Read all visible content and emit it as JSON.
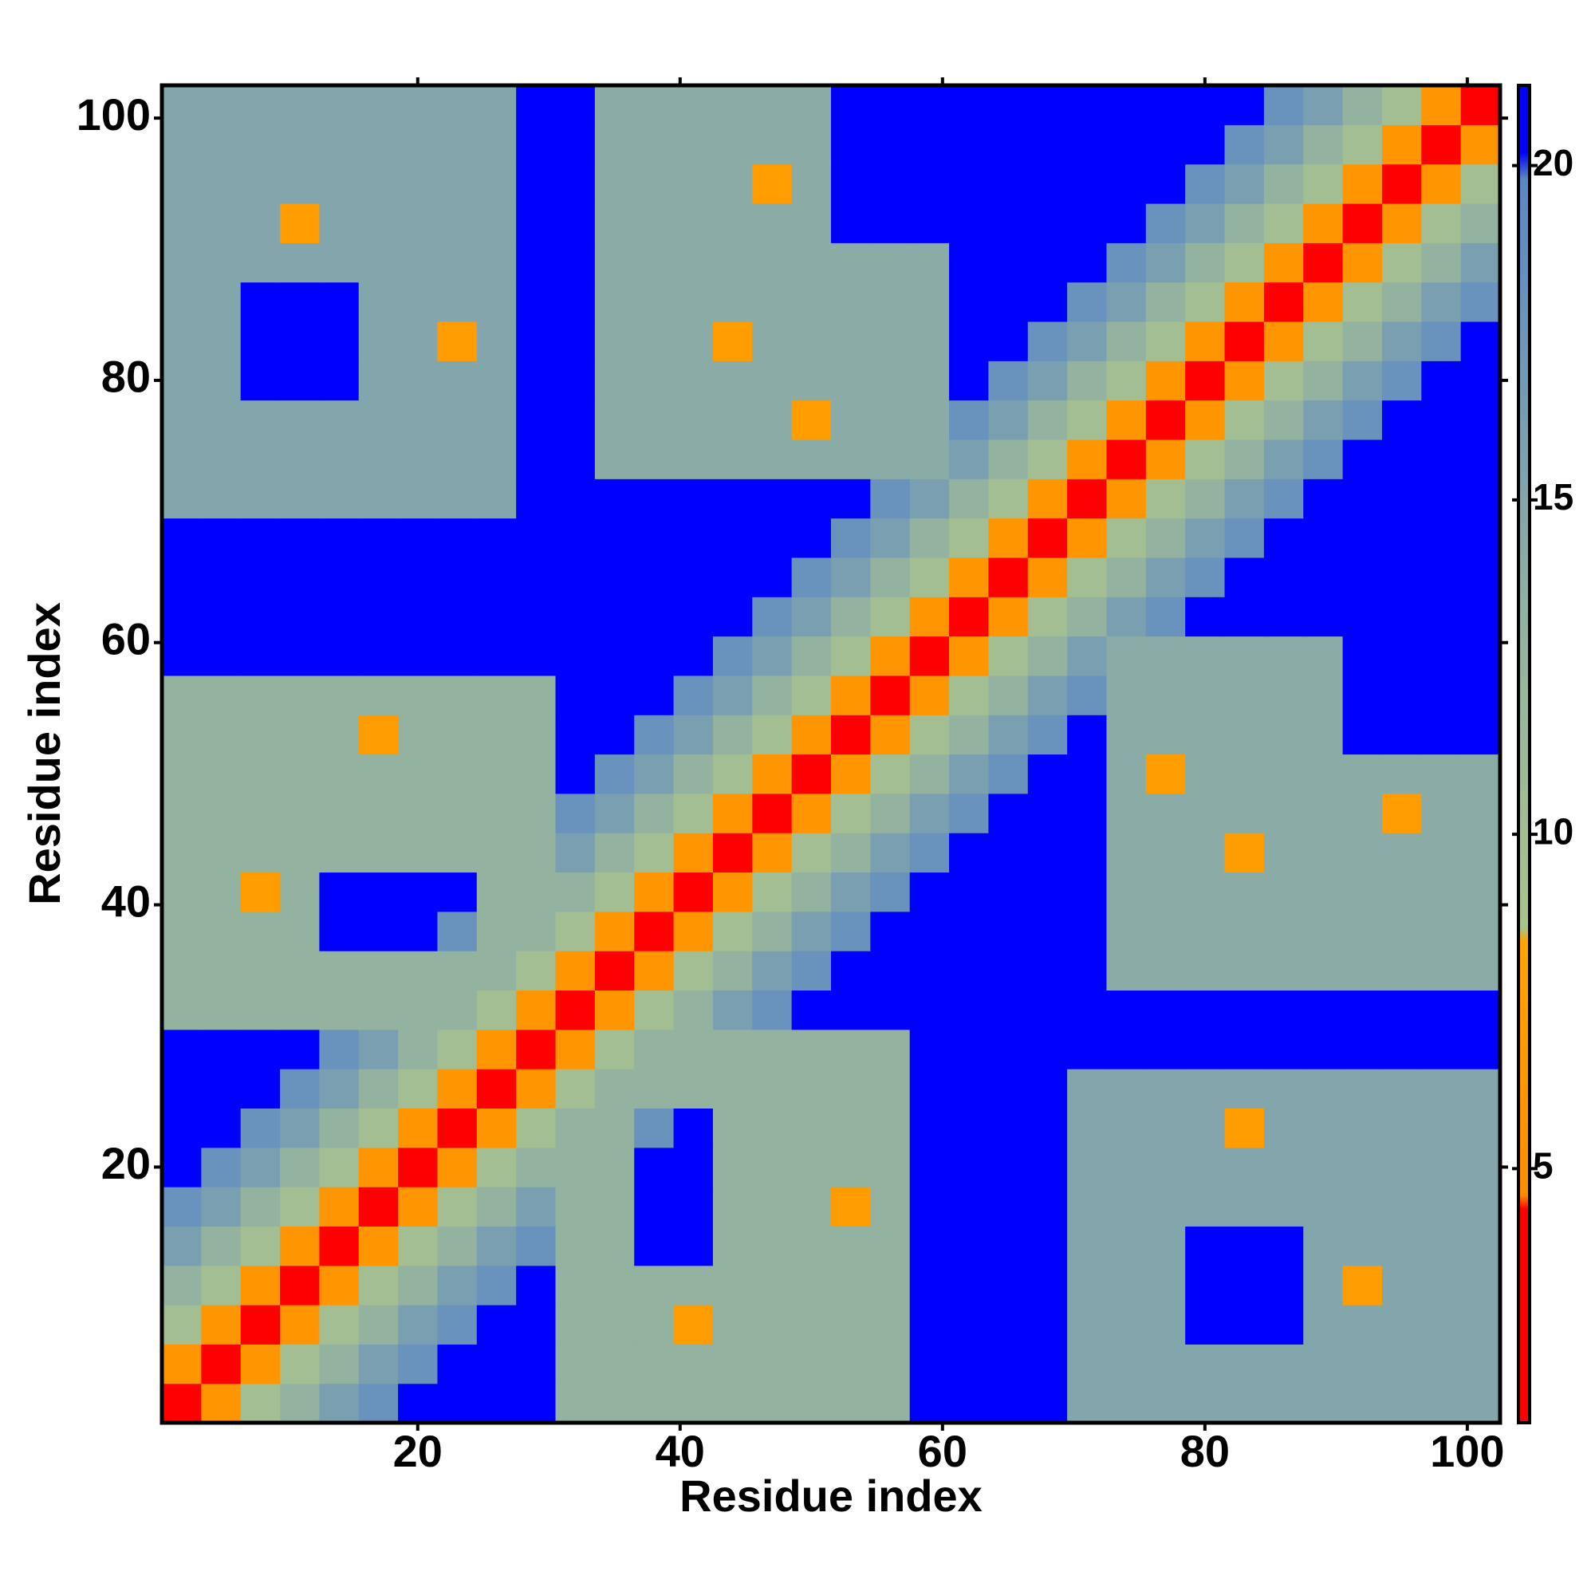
{
  "chart_data": {
    "type": "heatmap",
    "x_label": "Residue index",
    "y_label": "Residue index",
    "x": [
      2,
      5,
      8,
      11,
      14,
      17,
      20,
      23,
      26,
      29,
      32,
      35,
      38,
      41,
      44,
      47,
      50,
      53,
      56,
      59,
      62,
      65,
      68,
      71,
      74,
      77,
      80,
      83,
      86,
      89,
      92,
      95,
      98,
      101
    ],
    "y": [
      2,
      5,
      8,
      11,
      14,
      17,
      20,
      23,
      26,
      29,
      32,
      35,
      38,
      41,
      44,
      47,
      50,
      53,
      56,
      59,
      62,
      65,
      68,
      71,
      74,
      77,
      80,
      83,
      86,
      89,
      92,
      95,
      98,
      101
    ],
    "xlim": [
      0.5,
      102.5
    ],
    "ylim": [
      0.5,
      102.5
    ],
    "xticks": [
      20,
      40,
      60,
      80,
      100
    ],
    "yticks": [
      20,
      40,
      60,
      80,
      100
    ],
    "zlim": [
      1.2,
      21.2
    ],
    "colorbar_ticks": [
      5,
      10,
      15,
      20
    ],
    "colorscale": [
      {
        "value": 1.2,
        "color": "#ff0000"
      },
      {
        "value": 4.4,
        "color": "#ff0000"
      },
      {
        "value": 4.6,
        "color": "#ff8c00"
      },
      {
        "value": 8.4,
        "color": "#ffa500"
      },
      {
        "value": 8.6,
        "color": "#a9c38c"
      },
      {
        "value": 13,
        "color": "#93b3a0"
      },
      {
        "value": 19.8,
        "color": "#5a86c6"
      },
      {
        "value": 20.2,
        "color": "#0000ff"
      },
      {
        "value": 21.2,
        "color": "#0000ff"
      }
    ],
    "z": [
      [
        2,
        6,
        10,
        13,
        16,
        18,
        21,
        21,
        21,
        21,
        13,
        13,
        13,
        13,
        13,
        13,
        13,
        13,
        13,
        21,
        21,
        21,
        21,
        15,
        15,
        15,
        15,
        15,
        15,
        15,
        15,
        15,
        15,
        15
      ],
      [
        6,
        2,
        6,
        10,
        13,
        16,
        18,
        21,
        21,
        21,
        13,
        13,
        13,
        13,
        13,
        13,
        13,
        13,
        13,
        21,
        21,
        21,
        21,
        15,
        15,
        15,
        15,
        15,
        15,
        15,
        15,
        15,
        15,
        15
      ],
      [
        10,
        6,
        2,
        6,
        10,
        13,
        16,
        18,
        21,
        21,
        13,
        13,
        13,
        7,
        13,
        13,
        13,
        13,
        13,
        21,
        21,
        21,
        21,
        15,
        15,
        15,
        21,
        21,
        21,
        15,
        15,
        15,
        15,
        15
      ],
      [
        13,
        10,
        6,
        2,
        6,
        10,
        13,
        16,
        18,
        21,
        13,
        13,
        13,
        13,
        13,
        13,
        13,
        13,
        13,
        21,
        21,
        21,
        21,
        15,
        15,
        15,
        21,
        21,
        21,
        15,
        7,
        15,
        15,
        15
      ],
      [
        16,
        13,
        10,
        6,
        2,
        6,
        10,
        13,
        16,
        18,
        13,
        13,
        21,
        21,
        13,
        13,
        13,
        13,
        13,
        21,
        21,
        21,
        21,
        15,
        15,
        15,
        21,
        21,
        21,
        15,
        15,
        15,
        15,
        15
      ],
      [
        18,
        16,
        13,
        10,
        6,
        2,
        6,
        10,
        13,
        16,
        13,
        13,
        21,
        21,
        13,
        13,
        13,
        7,
        13,
        21,
        21,
        21,
        21,
        15,
        15,
        15,
        15,
        15,
        15,
        15,
        15,
        15,
        15,
        15
      ],
      [
        21,
        18,
        16,
        13,
        10,
        6,
        2,
        6,
        10,
        13,
        13,
        13,
        21,
        21,
        13,
        13,
        13,
        13,
        13,
        21,
        21,
        21,
        21,
        15,
        15,
        15,
        15,
        15,
        15,
        15,
        15,
        15,
        15,
        15
      ],
      [
        21,
        21,
        18,
        16,
        13,
        10,
        6,
        2,
        6,
        10,
        13,
        13,
        18,
        21,
        13,
        13,
        13,
        13,
        13,
        21,
        21,
        21,
        21,
        15,
        15,
        15,
        15,
        7,
        15,
        15,
        15,
        15,
        15,
        15
      ],
      [
        21,
        21,
        21,
        18,
        16,
        13,
        10,
        6,
        2,
        6,
        10,
        13,
        13,
        13,
        13,
        13,
        13,
        13,
        13,
        21,
        21,
        21,
        21,
        15,
        15,
        15,
        15,
        15,
        15,
        15,
        15,
        15,
        15,
        15
      ],
      [
        21,
        21,
        21,
        21,
        18,
        16,
        13,
        10,
        6,
        2,
        6,
        10,
        13,
        13,
        13,
        13,
        13,
        13,
        13,
        21,
        21,
        21,
        21,
        21,
        21,
        21,
        21,
        21,
        21,
        21,
        21,
        21,
        21,
        21
      ],
      [
        13,
        13,
        13,
        13,
        13,
        13,
        13,
        13,
        10,
        6,
        2,
        6,
        10,
        13,
        16,
        18,
        21,
        21,
        21,
        21,
        21,
        21,
        21,
        21,
        21,
        21,
        21,
        21,
        21,
        21,
        21,
        21,
        21,
        21
      ],
      [
        13,
        13,
        13,
        13,
        13,
        13,
        13,
        13,
        13,
        10,
        6,
        2,
        6,
        10,
        13,
        16,
        18,
        21,
        21,
        21,
        21,
        21,
        21,
        21,
        14,
        14,
        14,
        14,
        14,
        14,
        14,
        14,
        14,
        14
      ],
      [
        13,
        13,
        13,
        13,
        21,
        21,
        21,
        18,
        13,
        13,
        10,
        6,
        2,
        6,
        10,
        13,
        16,
        18,
        21,
        21,
        21,
        21,
        21,
        21,
        14,
        14,
        14,
        14,
        14,
        14,
        14,
        14,
        14,
        14
      ],
      [
        13,
        13,
        7,
        13,
        21,
        21,
        21,
        21,
        13,
        13,
        13,
        10,
        6,
        2,
        6,
        10,
        13,
        16,
        18,
        21,
        21,
        21,
        21,
        21,
        14,
        14,
        14,
        14,
        14,
        14,
        14,
        14,
        14,
        14
      ],
      [
        13,
        13,
        13,
        13,
        13,
        13,
        13,
        13,
        13,
        13,
        16,
        13,
        10,
        6,
        2,
        6,
        10,
        13,
        16,
        18,
        21,
        21,
        21,
        21,
        14,
        14,
        14,
        7,
        14,
        14,
        14,
        14,
        14,
        14
      ],
      [
        13,
        13,
        13,
        13,
        13,
        13,
        13,
        13,
        13,
        13,
        18,
        16,
        13,
        10,
        6,
        2,
        6,
        10,
        13,
        16,
        18,
        21,
        21,
        21,
        14,
        14,
        14,
        14,
        14,
        14,
        14,
        7,
        14,
        14
      ],
      [
        13,
        13,
        13,
        13,
        13,
        13,
        13,
        13,
        13,
        13,
        21,
        18,
        16,
        13,
        10,
        6,
        2,
        6,
        10,
        13,
        16,
        18,
        21,
        21,
        14,
        7,
        14,
        14,
        14,
        14,
        14,
        14,
        14,
        14
      ],
      [
        13,
        13,
        13,
        13,
        13,
        7,
        13,
        13,
        13,
        13,
        21,
        21,
        18,
        16,
        13,
        10,
        6,
        2,
        6,
        10,
        13,
        16,
        18,
        21,
        14,
        14,
        14,
        14,
        14,
        14,
        21,
        21,
        21,
        21
      ],
      [
        13,
        13,
        13,
        13,
        13,
        13,
        13,
        13,
        13,
        13,
        21,
        21,
        21,
        18,
        16,
        13,
        10,
        6,
        2,
        6,
        10,
        13,
        16,
        18,
        14,
        14,
        14,
        14,
        14,
        14,
        21,
        21,
        21,
        21
      ],
      [
        21,
        21,
        21,
        21,
        21,
        21,
        21,
        21,
        21,
        21,
        21,
        21,
        21,
        21,
        18,
        16,
        13,
        10,
        6,
        2,
        6,
        10,
        13,
        16,
        14,
        14,
        14,
        14,
        14,
        14,
        21,
        21,
        21,
        21
      ],
      [
        21,
        21,
        21,
        21,
        21,
        21,
        21,
        21,
        21,
        21,
        21,
        21,
        21,
        21,
        21,
        18,
        16,
        13,
        10,
        6,
        2,
        6,
        10,
        13,
        16,
        18,
        21,
        21,
        21,
        21,
        21,
        21,
        21,
        21
      ],
      [
        21,
        21,
        21,
        21,
        21,
        21,
        21,
        21,
        21,
        21,
        21,
        21,
        21,
        21,
        21,
        21,
        18,
        16,
        13,
        10,
        6,
        2,
        6,
        10,
        13,
        16,
        18,
        21,
        21,
        21,
        21,
        21,
        21,
        21
      ],
      [
        21,
        21,
        21,
        21,
        21,
        21,
        21,
        21,
        21,
        21,
        21,
        21,
        21,
        21,
        21,
        21,
        21,
        18,
        16,
        13,
        10,
        6,
        2,
        6,
        10,
        13,
        16,
        18,
        21,
        21,
        21,
        21,
        21,
        21
      ],
      [
        15,
        15,
        15,
        15,
        15,
        15,
        15,
        15,
        15,
        21,
        21,
        21,
        21,
        21,
        21,
        21,
        21,
        21,
        18,
        16,
        13,
        10,
        6,
        2,
        6,
        10,
        13,
        16,
        18,
        21,
        21,
        21,
        21,
        21
      ],
      [
        15,
        15,
        15,
        15,
        15,
        15,
        15,
        15,
        15,
        21,
        21,
        14,
        14,
        14,
        14,
        14,
        14,
        14,
        14,
        14,
        16,
        13,
        10,
        6,
        2,
        6,
        10,
        13,
        16,
        18,
        21,
        21,
        21,
        21
      ],
      [
        15,
        15,
        15,
        15,
        15,
        15,
        15,
        15,
        15,
        21,
        21,
        14,
        14,
        14,
        14,
        14,
        7,
        14,
        14,
        14,
        18,
        16,
        13,
        10,
        6,
        2,
        6,
        10,
        13,
        16,
        18,
        21,
        21,
        21
      ],
      [
        15,
        15,
        21,
        21,
        21,
        15,
        15,
        15,
        15,
        21,
        21,
        14,
        14,
        14,
        14,
        14,
        14,
        14,
        14,
        14,
        21,
        18,
        16,
        13,
        10,
        6,
        2,
        6,
        10,
        13,
        16,
        18,
        21,
        21
      ],
      [
        15,
        15,
        21,
        21,
        21,
        15,
        15,
        7,
        15,
        21,
        21,
        14,
        14,
        14,
        7,
        14,
        14,
        14,
        14,
        14,
        21,
        21,
        18,
        16,
        13,
        10,
        6,
        2,
        6,
        10,
        13,
        16,
        18,
        21
      ],
      [
        15,
        15,
        21,
        21,
        21,
        15,
        15,
        15,
        15,
        21,
        21,
        14,
        14,
        14,
        14,
        14,
        14,
        14,
        14,
        14,
        21,
        21,
        21,
        18,
        16,
        13,
        10,
        6,
        2,
        6,
        10,
        13,
        16,
        18
      ],
      [
        15,
        15,
        15,
        15,
        15,
        15,
        15,
        15,
        15,
        21,
        21,
        14,
        14,
        14,
        14,
        14,
        14,
        14,
        14,
        14,
        21,
        21,
        21,
        21,
        18,
        16,
        13,
        10,
        6,
        2,
        6,
        10,
        13,
        16
      ],
      [
        15,
        15,
        15,
        7,
        15,
        15,
        15,
        15,
        15,
        21,
        21,
        14,
        14,
        14,
        14,
        14,
        14,
        21,
        21,
        21,
        21,
        21,
        21,
        21,
        21,
        18,
        16,
        13,
        10,
        6,
        2,
        6,
        10,
        13
      ],
      [
        15,
        15,
        15,
        15,
        15,
        15,
        15,
        15,
        15,
        21,
        21,
        14,
        14,
        14,
        14,
        7,
        14,
        21,
        21,
        21,
        21,
        21,
        21,
        21,
        21,
        21,
        18,
        16,
        13,
        10,
        6,
        2,
        6,
        10
      ],
      [
        15,
        15,
        15,
        15,
        15,
        15,
        15,
        15,
        15,
        21,
        21,
        14,
        14,
        14,
        14,
        14,
        14,
        21,
        21,
        21,
        21,
        21,
        21,
        21,
        21,
        21,
        21,
        18,
        16,
        13,
        10,
        6,
        2,
        6
      ],
      [
        15,
        15,
        15,
        15,
        15,
        15,
        15,
        15,
        15,
        21,
        21,
        14,
        14,
        14,
        14,
        14,
        14,
        21,
        21,
        21,
        21,
        21,
        21,
        21,
        21,
        21,
        21,
        21,
        18,
        16,
        13,
        10,
        6,
        2
      ]
    ]
  }
}
